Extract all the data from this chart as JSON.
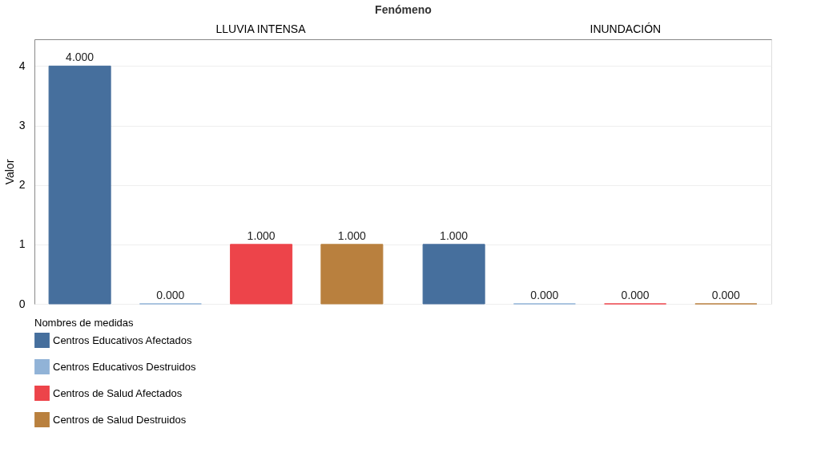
{
  "chart_data": {
    "type": "bar",
    "xlabel": "Fenómeno",
    "ylabel": "Valor",
    "legend_title": "Nombres de medidas",
    "categories": [
      "LLUVIA INTENSA",
      "INUNDACIÓN"
    ],
    "series": [
      {
        "name": "Centros Educativos Afectados",
        "color": "#466f9d",
        "values": [
          4,
          1
        ],
        "value_labels": [
          "4.000",
          "1.000"
        ]
      },
      {
        "name": "Centros Educativos Destruidos",
        "color": "#91b3d7",
        "values": [
          0,
          0
        ],
        "value_labels": [
          "0.000",
          "0.000"
        ]
      },
      {
        "name": "Centros de Salud Afectados",
        "color": "#ed444a",
        "values": [
          1,
          0
        ],
        "value_labels": [
          "1.000",
          "0.000"
        ]
      },
      {
        "name": "Centros de Salud Destruidos",
        "color": "#b9803e",
        "values": [
          1,
          0
        ],
        "value_labels": [
          "1.000",
          "0.000"
        ]
      }
    ],
    "ylim": [
      0,
      4.45
    ],
    "yticks": [
      0,
      1,
      2,
      3,
      4
    ],
    "grid": "y",
    "legend": "bottom left"
  }
}
